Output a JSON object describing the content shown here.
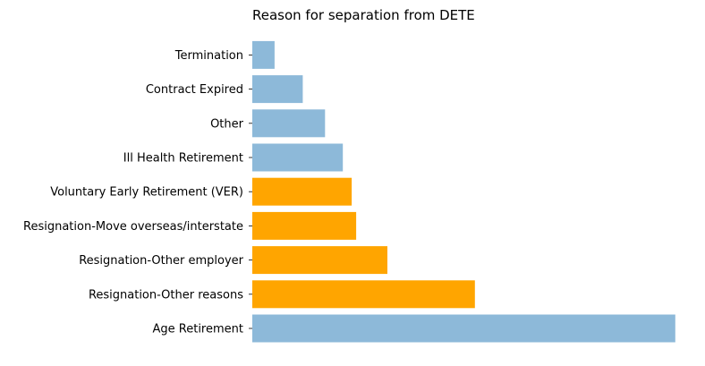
{
  "chart_data": {
    "type": "bar",
    "orientation": "horizontal",
    "title": "Reason for separation from DETE",
    "xlabel": "",
    "ylabel": "",
    "categories": [
      "Age Retirement",
      "Resignation-Other reasons",
      "Resignation-Other employer",
      "Resignation-Move overseas/interstate",
      "Voluntary Early Retirement (VER)",
      "Ill Health Retirement",
      "Other",
      "Contract Expired",
      "Termination"
    ],
    "values": [
      285,
      150,
      91,
      70,
      67,
      61,
      49,
      34,
      15
    ],
    "bar_colors": [
      "#8db9d9",
      "#ffa500",
      "#ffa500",
      "#ffa500",
      "#ffa500",
      "#8db9d9",
      "#8db9d9",
      "#8db9d9",
      "#8db9d9"
    ],
    "xlim": [
      0,
      299
    ],
    "grid": false,
    "axes_visible": false
  }
}
